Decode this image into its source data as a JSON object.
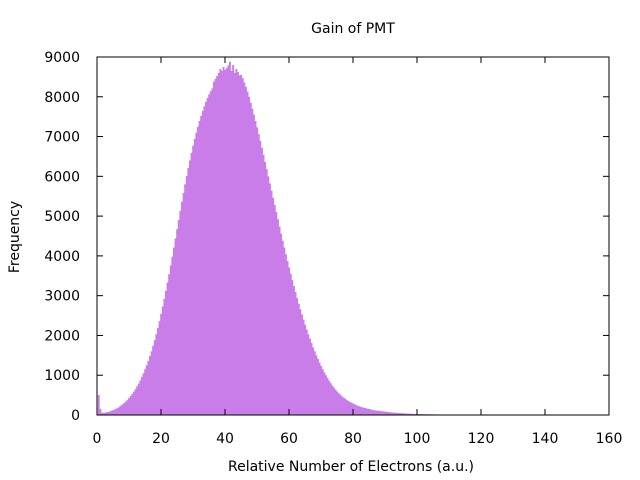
{
  "chart_data": {
    "type": "bar",
    "title": "Gain of PMT",
    "xlabel": "Relative Number of Electrons (a.u.)",
    "ylabel": "Frequency",
    "xlim": [
      0,
      160
    ],
    "ylim": [
      0,
      9000
    ],
    "xticks": [
      0,
      20,
      40,
      60,
      80,
      100,
      120,
      140,
      160
    ],
    "yticks": [
      0,
      1000,
      2000,
      3000,
      4000,
      5000,
      6000,
      7000,
      8000,
      9000
    ],
    "grid": false,
    "legend": "none",
    "bar_color": "#c87de8",
    "bin_width": 0.5,
    "series": [
      {
        "x": [
          0.5,
          1.0,
          1.5,
          2.0,
          2.5,
          3.0,
          3.5,
          4.0,
          4.5,
          5.0,
          5.5,
          6.0,
          6.5,
          7.0,
          7.5,
          8.0,
          8.5,
          9.0,
          9.5,
          10.0,
          10.5,
          11.0,
          11.5,
          12.0,
          12.5,
          13.0,
          13.5,
          14.0,
          14.5,
          15.0,
          15.5,
          16.0,
          16.5,
          17.0,
          17.5,
          18.0,
          18.5,
          19.0,
          19.5,
          20.0,
          20.5,
          21.0,
          21.5,
          22.0,
          22.5,
          23.0,
          23.5,
          24.0,
          24.5,
          25.0,
          25.5,
          26.0,
          26.5,
          27.0,
          27.5,
          28.0,
          28.5,
          29.0,
          29.5,
          30.0,
          30.5,
          31.0,
          31.5,
          32.0,
          32.5,
          33.0,
          33.5,
          34.0,
          34.5,
          35.0,
          35.5,
          36.0,
          36.5,
          37.0,
          37.5,
          38.0,
          38.5,
          39.0,
          39.5,
          40.0,
          40.5,
          41.0,
          41.5,
          42.0,
          42.5,
          43.0,
          43.5,
          44.0,
          44.5,
          45.0,
          45.5,
          46.0,
          46.5,
          47.0,
          47.5,
          48.0,
          48.5,
          49.0,
          49.5,
          50.0,
          50.5,
          51.0,
          51.5,
          52.0,
          52.5,
          53.0,
          53.5,
          54.0,
          54.5,
          55.0,
          55.5,
          56.0,
          56.5,
          57.0,
          57.5,
          58.0,
          58.5,
          59.0,
          59.5,
          60.0,
          60.5,
          61.0,
          61.5,
          62.0,
          62.5,
          63.0,
          63.5,
          64.0,
          64.5,
          65.0,
          65.5,
          66.0,
          66.5,
          67.0,
          67.5,
          68.0,
          68.5,
          69.0,
          69.5,
          70.0,
          70.5,
          71.0,
          71.5,
          72.0,
          72.5,
          73.0,
          73.5,
          74.0,
          74.5,
          75.0,
          75.5,
          76.0,
          76.5,
          77.0,
          77.5,
          78.0,
          78.5,
          79.0,
          79.5,
          80.0,
          80.5,
          81.0,
          81.5,
          82.0,
          82.5,
          83.0,
          83.5,
          84.0,
          84.5,
          85.0,
          85.5,
          86.0,
          86.5,
          87.0,
          87.5,
          88.0,
          88.5,
          89.0,
          89.5,
          90.0,
          90.5,
          91.0,
          91.5,
          92.0,
          92.5,
          93.0,
          93.5,
          94.0,
          94.5,
          95.0,
          95.5,
          96.0,
          96.5,
          97.0,
          97.5,
          98.0,
          98.5,
          99.0,
          99.5,
          100.0,
          100.5,
          101.0,
          101.5,
          102.0,
          102.5,
          103.0,
          103.5,
          104.0,
          104.5,
          105.0,
          105.5,
          106.0,
          106.5,
          107.0,
          107.5,
          108.0,
          108.5,
          109.0,
          109.5,
          110.0,
          110.5,
          111.0,
          111.5,
          112.0,
          112.5,
          113.0,
          113.5,
          114.0,
          114.5,
          115.0,
          115.5,
          116.0,
          116.5,
          117.0,
          117.5,
          118.0,
          118.5,
          119.0,
          119.5,
          120.0,
          120.5,
          121.0,
          121.5,
          122.0,
          122.5,
          123.0,
          123.5,
          124.0,
          124.5,
          125.0
        ],
        "values": [
          500,
          150,
          60,
          55,
          60,
          70,
          80,
          90,
          110,
          120,
          140,
          160,
          180,
          210,
          240,
          270,
          300,
          340,
          380,
          430,
          480,
          530,
          590,
          650,
          720,
          790,
          870,
          960,
          1050,
          1150,
          1250,
          1360,
          1480,
          1600,
          1740,
          1880,
          2030,
          2190,
          2360,
          2540,
          2730,
          2920,
          3120,
          3330,
          3540,
          3760,
          3980,
          4210,
          4440,
          4670,
          4900,
          5130,
          5360,
          5580,
          5800,
          6010,
          6210,
          6400,
          6590,
          6770,
          6940,
          7100,
          7250,
          7390,
          7520,
          7640,
          7760,
          7870,
          7970,
          8060,
          8140,
          8210,
          8380,
          8450,
          8520,
          8600,
          8700,
          8650,
          8750,
          8680,
          8720,
          8790,
          8880,
          8650,
          8800,
          8600,
          8700,
          8620,
          8540,
          8550,
          8470,
          8360,
          8250,
          8130,
          8000,
          7850,
          7700,
          7550,
          7390,
          7230,
          7060,
          6890,
          6720,
          6540,
          6360,
          6180,
          6000,
          5820,
          5640,
          5460,
          5280,
          5100,
          4920,
          4740,
          4560,
          4380,
          4210,
          4040,
          3870,
          3710,
          3550,
          3390,
          3240,
          3090,
          2940,
          2800,
          2660,
          2530,
          2400,
          2270,
          2150,
          2030,
          1920,
          1810,
          1700,
          1600,
          1500,
          1410,
          1320,
          1230,
          1150,
          1070,
          1000,
          930,
          860,
          800,
          740,
          690,
          640,
          590,
          550,
          510,
          470,
          440,
          410,
          380,
          350,
          330,
          310,
          290,
          270,
          250,
          230,
          220,
          200,
          190,
          180,
          170,
          160,
          150,
          140,
          130,
          120,
          115,
          110,
          105,
          100,
          95,
          90,
          85,
          80,
          75,
          70,
          66,
          62,
          58,
          55,
          52,
          49,
          46,
          43,
          40,
          38,
          36,
          34,
          32,
          30,
          28,
          26,
          25,
          24,
          23,
          22,
          21,
          20,
          19,
          18,
          17,
          16,
          15,
          14,
          13,
          12,
          11,
          10,
          10,
          9,
          9,
          8,
          8,
          7,
          7,
          6,
          6,
          5,
          5,
          5,
          4,
          4,
          4,
          3,
          3,
          3,
          3,
          2,
          2,
          2,
          2,
          2,
          2,
          1,
          1,
          1,
          1,
          1,
          1,
          1,
          1,
          1,
          1
        ]
      }
    ]
  }
}
